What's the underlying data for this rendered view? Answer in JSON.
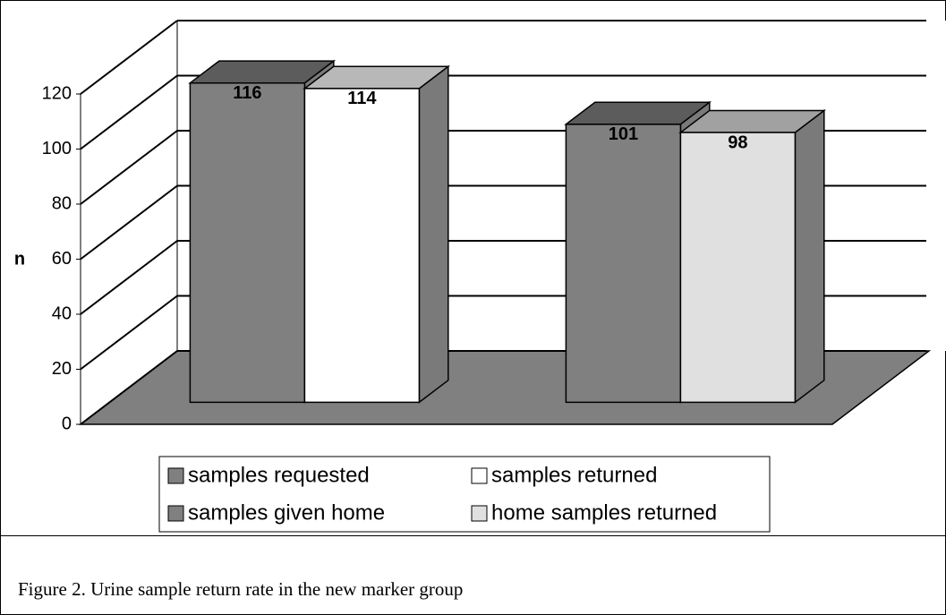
{
  "chart_data": {
    "type": "bar3d",
    "caption": "Figure 2. Urine sample return rate in the new marker group",
    "y_label": "n",
    "categories": [
      null,
      null
    ],
    "series": [
      {
        "name": "samples requested",
        "color": "#808080",
        "values": [
          116,
          null
        ]
      },
      {
        "name": "samples returned",
        "color": "#ffffff",
        "values": [
          114,
          null
        ]
      },
      {
        "name": "samples given home",
        "color": "#808080",
        "values": [
          null,
          101
        ]
      },
      {
        "name": "home samples returned",
        "color": "#e0e0e0",
        "values": [
          null,
          98
        ]
      }
    ],
    "ylim": [
      0,
      120
    ],
    "yticks": [
      0,
      20,
      40,
      60,
      80,
      100,
      120
    ],
    "grid": true
  }
}
